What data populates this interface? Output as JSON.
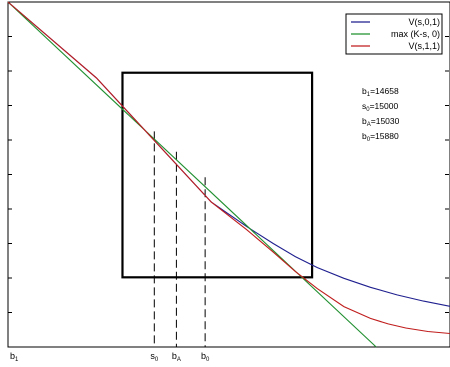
{
  "chart_data": {
    "type": "line",
    "title": "",
    "xlabel": "",
    "ylabel": "",
    "grid": false,
    "legend_placement": "top-right",
    "xlim": [
      0,
      1
    ],
    "ylim": [
      0,
      1
    ],
    "series": [
      {
        "name": "V(s,0,1)",
        "color": "#1f1f8f",
        "x": [
          0,
          0.2,
          0.46,
          0.54,
          0.6,
          0.65,
          0.7,
          0.76,
          0.82,
          0.88,
          0.94,
          1.0
        ],
        "y": [
          1.0,
          0.78,
          0.42,
          0.349,
          0.3,
          0.262,
          0.23,
          0.199,
          0.173,
          0.151,
          0.133,
          0.118
        ]
      },
      {
        "name": "max (K-s, 0)",
        "color": "#1f8f2f",
        "x": [
          0,
          0.833
        ],
        "y": [
          1.0,
          0.0
        ]
      },
      {
        "name": "V(s,1,1)",
        "color": "#c01c1c",
        "x": [
          0,
          0.2,
          0.46,
          0.54,
          0.6,
          0.65,
          0.7,
          0.76,
          0.82,
          0.86,
          0.9,
          0.95,
          1.0
        ],
        "y": [
          1.0,
          0.78,
          0.42,
          0.34,
          0.275,
          0.219,
          0.169,
          0.117,
          0.083,
          0.067,
          0.055,
          0.045,
          0.039
        ]
      }
    ],
    "x_tick_labels": [
      {
        "base": "b",
        "sub": "1",
        "x": 0.0
      },
      {
        "base": "s",
        "sub": "0",
        "x": 0.331
      },
      {
        "base": "b",
        "sub": "A",
        "x": 0.381
      },
      {
        "base": "b",
        "sub": "0",
        "x": 0.446
      }
    ],
    "dashed_markers": [
      {
        "x": 0.331,
        "y": 0.625
      },
      {
        "x": 0.381,
        "y": 0.566
      },
      {
        "x": 0.446,
        "y": 0.492
      }
    ],
    "zoom_box": {
      "x0": 0.259,
      "x1": 0.688,
      "y0": 0.202,
      "y1": 0.795
    },
    "annotations": [
      {
        "base": "b",
        "sub": "1",
        "value": "=14658"
      },
      {
        "base": "s",
        "sub": "0",
        "value": "=15000"
      },
      {
        "base": "b",
        "sub": "A",
        "value": "=15030"
      },
      {
        "base": "b",
        "sub": "0",
        "value": "=15880"
      }
    ]
  }
}
